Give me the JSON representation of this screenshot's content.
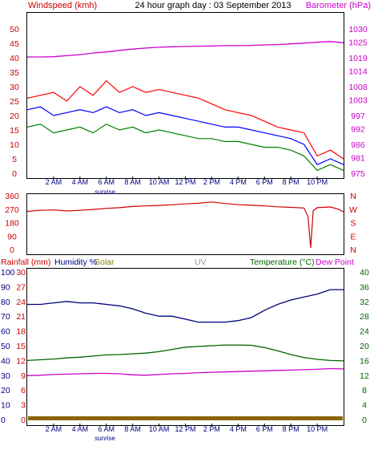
{
  "header": {
    "left_title": "Windspeed (kmh)",
    "center_title": "24 hour graph day : 03 September 2013",
    "right_title": "Barometer (hPa)"
  },
  "colors": {
    "wind_gust": "#ff0000",
    "wind_avg_low": "#008000",
    "wind_mid": "#0000ff",
    "barometer": "#cc00cc",
    "direction": "#cc0000",
    "humidity": "#000080",
    "temperature": "#006400",
    "dewpoint": "#cc00cc",
    "rainfall": "#8b6508",
    "uv": "#999999",
    "solar": "#808000",
    "axis_red": "#cc0000",
    "axis_blue": "#000080",
    "axis_green": "#006400"
  },
  "time_axis": {
    "labels": [
      "2 AM",
      "4 AM",
      "6 AM",
      "8 AM",
      "10 AM",
      "12 PM",
      "2 PM",
      "4 PM",
      "6 PM",
      "8 PM",
      "10 PM"
    ],
    "sunrise_label": "sunrise"
  },
  "chart_data": [
    {
      "type": "line",
      "id": "wind-barometer",
      "xlabel": "",
      "left_axis": {
        "label": "Windspeed (kmh)",
        "ticks": [
          0,
          5,
          10,
          15,
          20,
          25,
          30,
          35,
          40,
          45,
          50
        ],
        "range": [
          0,
          50
        ]
      },
      "right_axis": {
        "label": "Barometer (hPa)",
        "ticks": [
          975,
          981,
          986,
          992,
          997,
          1003,
          1008,
          1014,
          1019,
          1025,
          1030
        ],
        "range": [
          975,
          1030
        ]
      },
      "series": [
        {
          "name": "Windspeed (kmh)",
          "axis": "left",
          "x": [
            0,
            1,
            2,
            3,
            4,
            5,
            6,
            7,
            8,
            9,
            10,
            11,
            12,
            13,
            14,
            15,
            16,
            17,
            18,
            19,
            20,
            21,
            22,
            23,
            24
          ],
          "values": [
            26,
            27,
            28,
            25,
            30,
            27,
            32,
            28,
            30,
            28,
            29,
            28,
            27,
            26,
            24,
            22,
            21,
            20,
            18,
            16,
            15,
            14,
            6,
            8,
            5
          ]
        },
        {
          "name": "",
          "axis": "left",
          "x": [
            0,
            1,
            2,
            3,
            4,
            5,
            6,
            7,
            8,
            9,
            10,
            11,
            12,
            13,
            14,
            15,
            16,
            17,
            18,
            19,
            20,
            21,
            22,
            23,
            24
          ],
          "values": [
            22,
            23,
            20,
            21,
            22,
            21,
            23,
            21,
            22,
            20,
            21,
            20,
            19,
            18,
            17,
            16,
            16,
            15,
            14,
            13,
            12,
            10,
            3,
            5,
            3
          ]
        },
        {
          "name": "",
          "axis": "left",
          "x": [
            0,
            1,
            2,
            3,
            4,
            5,
            6,
            7,
            8,
            9,
            10,
            11,
            12,
            13,
            14,
            15,
            16,
            17,
            18,
            19,
            20,
            21,
            22,
            23,
            24
          ],
          "values": [
            16,
            17,
            14,
            15,
            16,
            14,
            17,
            15,
            16,
            14,
            15,
            14,
            13,
            12,
            12,
            11,
            11,
            10,
            9,
            9,
            8,
            6,
            1,
            3,
            1
          ]
        },
        {
          "name": "Barometer (hPa)",
          "axis": "right",
          "x": [
            0,
            1,
            2,
            3,
            4,
            5,
            6,
            7,
            8,
            9,
            10,
            11,
            12,
            13,
            14,
            15,
            16,
            17,
            18,
            19,
            20,
            21,
            22,
            23,
            24
          ],
          "values": [
            1019.3,
            1019.3,
            1019.4,
            1019.8,
            1020.2,
            1020.8,
            1021.2,
            1021.8,
            1022.3,
            1022.7,
            1023.0,
            1023.2,
            1023.3,
            1023.4,
            1023.5,
            1023.6,
            1023.6,
            1023.7,
            1023.9,
            1024.0,
            1024.3,
            1024.6,
            1024.9,
            1025.2,
            1024.7
          ]
        }
      ]
    },
    {
      "type": "line",
      "id": "wind-direction",
      "left_axis": {
        "ticks": [
          0,
          90,
          180,
          270,
          360
        ],
        "range": [
          0,
          360
        ]
      },
      "right_axis": {
        "labels": [
          "N",
          "W",
          "S",
          "E",
          "N"
        ]
      },
      "series": [
        {
          "name": "",
          "x": [
            0,
            1,
            2,
            3,
            4,
            5,
            6,
            7,
            8,
            9,
            10,
            11,
            12,
            13,
            14,
            15,
            16,
            17,
            18,
            19,
            20,
            21,
            21.3,
            21.5,
            21.7,
            22,
            23,
            23.6,
            24
          ],
          "values": [
            255,
            262,
            265,
            258,
            262,
            268,
            275,
            280,
            288,
            292,
            295,
            300,
            305,
            310,
            318,
            308,
            300,
            296,
            292,
            286,
            282,
            278,
            220,
            10,
            260,
            280,
            285,
            270,
            252
          ]
        }
      ]
    },
    {
      "type": "line",
      "id": "climate",
      "header_labels": {
        "rainfall": "Rainfall (mm)",
        "humidity": "Humidity %",
        "solar": "Solar",
        "uv": "UV",
        "temperature": "Temperature (°C)",
        "dewpoint": "Dew Point"
      },
      "rain_axis": {
        "ticks": [
          0,
          3,
          6,
          9,
          12,
          15,
          18,
          21,
          24,
          27,
          30
        ],
        "range": [
          0,
          30
        ]
      },
      "humidity_axis": {
        "ticks": [
          0,
          10,
          20,
          30,
          40,
          50,
          60,
          70,
          80,
          90,
          100
        ],
        "range": [
          0,
          100
        ]
      },
      "temp_axis": {
        "ticks": [
          0,
          4,
          8,
          12,
          16,
          20,
          24,
          28,
          32,
          36,
          40
        ],
        "range": [
          0,
          40
        ]
      },
      "series": [
        {
          "name": "Humidity %",
          "axis": "humidity",
          "x": [
            0,
            1,
            2,
            3,
            4,
            5,
            6,
            7,
            8,
            9,
            10,
            11,
            12,
            13,
            14,
            15,
            16,
            17,
            18,
            19,
            20,
            21,
            22,
            23,
            24
          ],
          "values": [
            78,
            78,
            79,
            80,
            79,
            79,
            78,
            77,
            75,
            72,
            70,
            70,
            68,
            66,
            66,
            66,
            67,
            69,
            74,
            78,
            81,
            83,
            85,
            88,
            88
          ]
        },
        {
          "name": "Temperature (°C)",
          "axis": "temp",
          "x": [
            0,
            1,
            2,
            3,
            4,
            5,
            6,
            7,
            8,
            9,
            10,
            11,
            12,
            13,
            14,
            15,
            16,
            17,
            18,
            19,
            20,
            21,
            22,
            23,
            24
          ],
          "values": [
            16.0,
            16.2,
            16.4,
            16.7,
            16.9,
            17.2,
            17.5,
            17.6,
            17.8,
            18.0,
            18.4,
            19.0,
            19.6,
            19.8,
            20.0,
            20.2,
            20.2,
            20.1,
            19.5,
            18.6,
            17.6,
            16.8,
            16.3,
            16.0,
            15.9
          ]
        },
        {
          "name": "Dew Point",
          "axis": "temp",
          "x": [
            0,
            1,
            2,
            3,
            4,
            5,
            6,
            7,
            8,
            9,
            10,
            11,
            12,
            13,
            14,
            15,
            16,
            17,
            18,
            19,
            20,
            21,
            22,
            23,
            24
          ],
          "values": [
            11.9,
            12.0,
            12.2,
            12.3,
            12.4,
            12.5,
            12.5,
            12.4,
            12.1,
            12.0,
            12.2,
            12.4,
            12.5,
            12.7,
            12.8,
            12.9,
            13.0,
            13.1,
            13.2,
            13.3,
            13.4,
            13.5,
            13.6,
            13.8,
            13.7
          ]
        },
        {
          "name": "Rainfall (mm)",
          "axis": "rain",
          "x": [
            0,
            24
          ],
          "values": [
            0,
            0
          ]
        }
      ]
    }
  ]
}
